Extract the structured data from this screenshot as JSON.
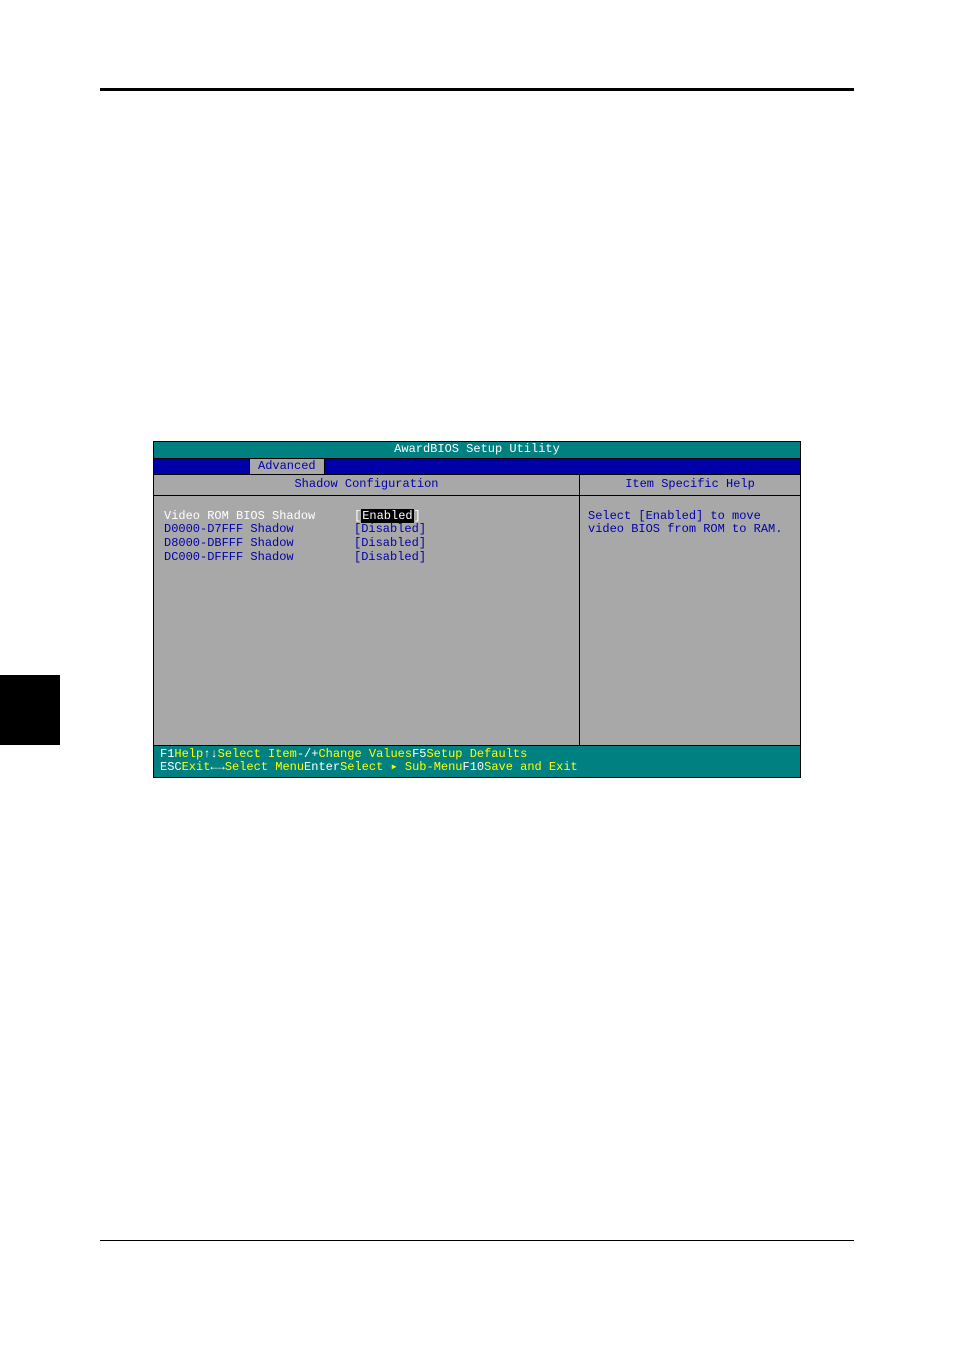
{
  "bios": {
    "title": "AwardBIOS Setup Utility",
    "tab": "Advanced",
    "header_left": "Shadow Configuration",
    "header_right": "Item Specific Help",
    "settings": [
      {
        "label": "Video ROM BIOS Shadow",
        "value": "Enabled",
        "selected": true
      },
      {
        "label": "D0000-D7FFF Shadow",
        "value": "Disabled",
        "selected": false
      },
      {
        "label": "D8000-DBFFF Shadow",
        "value": "Disabled",
        "selected": false
      },
      {
        "label": "DC000-DFFFF Shadow",
        "value": "Disabled",
        "selected": false
      }
    ],
    "help_text": "Select [Enabled] to move video BIOS from ROM to RAM.",
    "footer": {
      "row1": {
        "k1": "F1",
        "l1": "Help",
        "k2": "↑↓",
        "l2": "Select Item",
        "k3": "-/+",
        "l3": "Change Values",
        "k4": "F5",
        "l4": "Setup Defaults"
      },
      "row2": {
        "k1": "ESC",
        "l1": "Exit",
        "k2": "←→",
        "l2": "Select Menu",
        "k3": "Enter",
        "l3": "Select ▸ Sub-Menu",
        "k4": "F10",
        "l4": "Save and Exit"
      }
    }
  },
  "colors": {
    "teal": "#008080",
    "blue": "#0000a8",
    "gray": "#a8a8a8",
    "yellow": "#ffff00",
    "white": "#ffffff",
    "black": "#000000"
  }
}
